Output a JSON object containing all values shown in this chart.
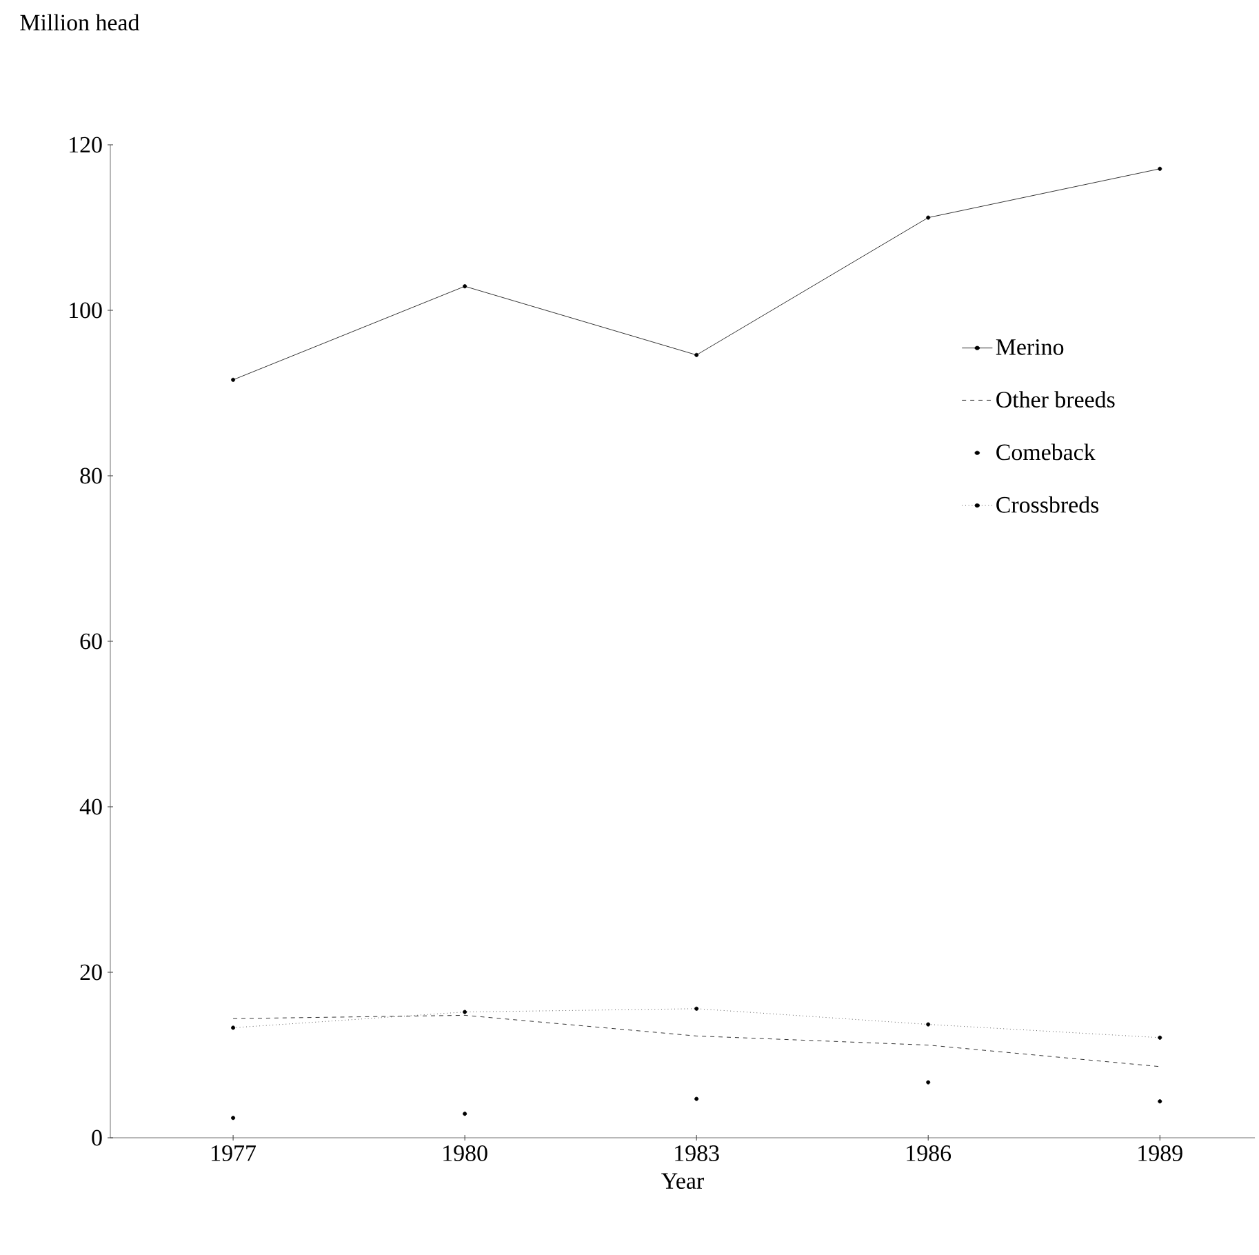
{
  "chart_data": {
    "type": "line",
    "xlabel": "Year",
    "ylabel": "Million head",
    "categories": [
      "1977",
      "1980",
      "1983",
      "1986",
      "1989"
    ],
    "series": [
      {
        "name": "Merino",
        "color": "#000000",
        "values": [
          91.6,
          102.9,
          94.6,
          111.2,
          117.1
        ],
        "line_style": "solid",
        "marker": "circle"
      },
      {
        "name": "Other breeds",
        "color": "#000000",
        "values": [
          14.4,
          14.8,
          12.3,
          11.2,
          8.6
        ],
        "line_style": "dashed",
        "marker": "none"
      },
      {
        "name": "Comeback",
        "color": "#000000",
        "type": "scatter",
        "values": [
          2.4,
          2.9,
          4.7,
          6.7,
          4.4
        ],
        "marker": "circle"
      },
      {
        "name": "Crossbreds",
        "color": "#000000",
        "values": [
          13.3,
          15.2,
          15.6,
          13.7,
          12.1
        ],
        "line_style": "dotted",
        "marker": "circle"
      }
    ],
    "ylim": [
      0,
      120
    ],
    "yticks": [
      0,
      20,
      40,
      60,
      80,
      100,
      120
    ],
    "grid": false,
    "legend": "right"
  }
}
